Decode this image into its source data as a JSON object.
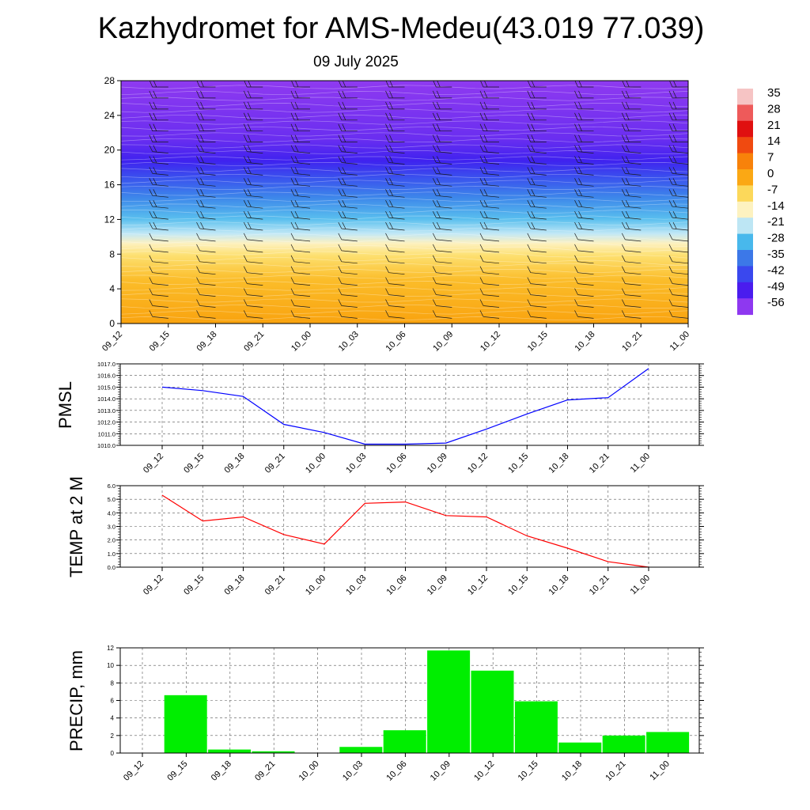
{
  "title": "Kazhydromet for AMS-Medeu(43.019 77.039)",
  "subtitle": "09 July 2025",
  "time_labels": [
    "09_12",
    "09_15",
    "09_18",
    "09_21",
    "10_00",
    "10_03",
    "10_06",
    "10_09",
    "10_12",
    "10_15",
    "10_18",
    "10_21",
    "11_00"
  ],
  "chart_data": [
    {
      "type": "heatmap",
      "name": "cross-section",
      "x": [
        "09_12",
        "09_15",
        "09_18",
        "09_21",
        "10_00",
        "10_03",
        "10_06",
        "10_09",
        "10_12",
        "10_15",
        "10_18",
        "10_21",
        "11_00"
      ],
      "ylim": [
        0,
        28
      ],
      "yticks": [
        0,
        4,
        8,
        12,
        16,
        20,
        24,
        28
      ],
      "colorbar_labels": [
        "35",
        "28",
        "21",
        "14",
        "7",
        "0",
        "-7",
        "-14",
        "-21",
        "-28",
        "-35",
        "-42",
        "-49",
        "-56"
      ],
      "colorbar_colors": [
        "#f6c4c4",
        "#ee5a5a",
        "#e01010",
        "#f04a10",
        "#f8820a",
        "#fba814",
        "#fcd85a",
        "#fdf2c0",
        "#bde6f4",
        "#48b8ec",
        "#3c78e8",
        "#3a48ee",
        "#4a1cee",
        "#8e38f0"
      ],
      "barbs": true
    },
    {
      "type": "line",
      "name": "PMSL",
      "ylabel": "PMSL",
      "x": [
        "09_12",
        "09_15",
        "09_18",
        "09_21",
        "10_00",
        "10_03",
        "10_06",
        "10_09",
        "10_12",
        "10_15",
        "10_18",
        "10_21",
        "11_00"
      ],
      "values": [
        1015.0,
        1014.7,
        1014.2,
        1011.8,
        1011.1,
        1010.1,
        1010.1,
        1010.2,
        1011.4,
        1012.7,
        1013.9,
        1014.1,
        1016.6
      ],
      "ylim": [
        1010.0,
        1017.0
      ],
      "yticks": [
        "1010.0",
        "1011.0",
        "1012.0",
        "1013.0",
        "1014.0",
        "1015.0",
        "1016.0",
        "1017.0"
      ],
      "color": "#0000ff",
      "grid": true
    },
    {
      "type": "line",
      "name": "TEMP",
      "ylabel": "TEMP at 2 M",
      "x": [
        "09_12",
        "09_15",
        "09_18",
        "09_21",
        "10_00",
        "10_03",
        "10_06",
        "10_09",
        "10_12",
        "10_15",
        "10_18",
        "10_21",
        "11_00"
      ],
      "values": [
        5.3,
        3.4,
        3.7,
        2.4,
        1.7,
        4.7,
        4.8,
        3.8,
        3.7,
        2.3,
        1.4,
        0.4,
        0.0
      ],
      "ylim": [
        0.0,
        6.0
      ],
      "yticks": [
        "0.0",
        "1.0",
        "2.0",
        "3.0",
        "4.0",
        "5.0",
        "6.0"
      ],
      "color": "#ff0000",
      "grid": true
    },
    {
      "type": "bar",
      "name": "PRECIP",
      "ylabel": "PRECIP, mm",
      "categories": [
        "09_12",
        "09_15",
        "09_18",
        "09_21",
        "10_00",
        "10_03",
        "10_06",
        "10_09",
        "10_12",
        "10_15",
        "10_18",
        "10_21",
        "11_00"
      ],
      "values": [
        0,
        6.6,
        0.4,
        0.2,
        0,
        0.7,
        2.6,
        11.7,
        9.4,
        5.9,
        1.2,
        2.0,
        2.4
      ],
      "ylim": [
        0,
        12
      ],
      "yticks": [
        "0",
        "2",
        "4",
        "6",
        "8",
        "10",
        "12"
      ],
      "color": "#00ee00",
      "grid": true
    }
  ]
}
